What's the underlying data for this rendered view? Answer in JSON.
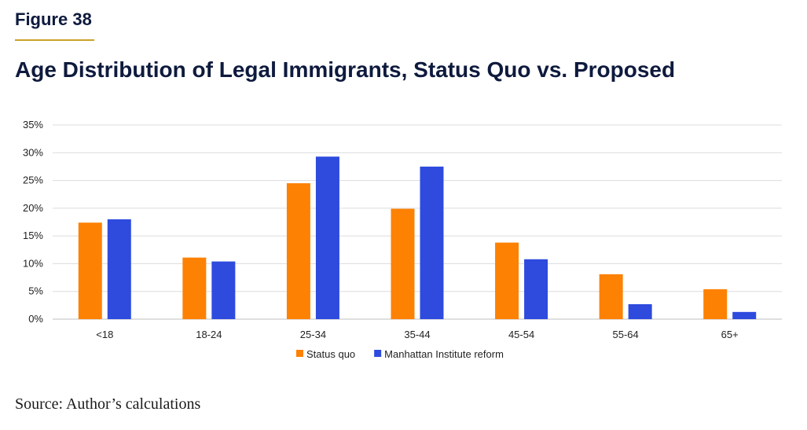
{
  "figure_label": "Figure 38",
  "source": "Source: Author’s calculations",
  "colors": {
    "status_quo": "#fd8103",
    "reform": "#2e4bde",
    "accent": "#c9a227"
  },
  "chart_data": {
    "type": "bar",
    "title": "Age Distribution of Legal Immigrants, Status Quo vs. Proposed",
    "categories": [
      "<18",
      "18-24",
      "25-34",
      "35-44",
      "45-54",
      "55-64",
      "65+"
    ],
    "series": [
      {
        "name": "Status quo",
        "values": [
          17.4,
          11.1,
          24.5,
          19.9,
          13.8,
          8.1,
          5.4
        ]
      },
      {
        "name": "Manhattan Institute reform",
        "values": [
          18.0,
          10.4,
          29.3,
          27.5,
          10.8,
          2.7,
          1.3
        ]
      }
    ],
    "ylim": [
      0,
      35
    ],
    "yticks": [
      "0%",
      "5%",
      "10%",
      "15%",
      "20%",
      "25%",
      "30%",
      "35%"
    ],
    "xlabel": "",
    "ylabel": "",
    "grid": true,
    "legend": "bottom-center"
  }
}
